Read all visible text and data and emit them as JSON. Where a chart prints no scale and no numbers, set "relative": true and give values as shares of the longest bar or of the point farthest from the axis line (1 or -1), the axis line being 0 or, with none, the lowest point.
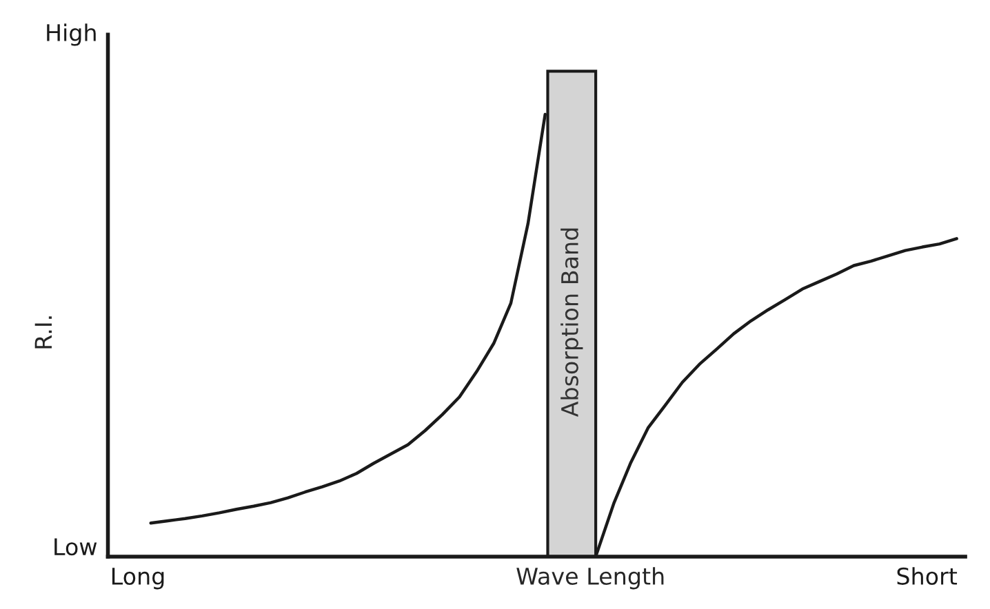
{
  "chart_data": {
    "type": "line",
    "xlabel": "Wave Length",
    "ylabel": "R.I.",
    "relative": true,
    "categories": [
      null,
      null,
      null,
      null,
      null,
      null,
      null,
      null,
      null,
      null,
      null,
      null,
      null,
      null,
      null,
      null,
      null,
      null,
      null,
      null,
      null,
      null,
      null,
      null,
      null,
      null,
      null,
      null,
      null,
      null,
      null,
      null,
      null,
      null,
      null,
      null,
      null,
      null,
      null,
      null,
      null,
      null,
      null,
      null,
      null,
      null,
      null,
      null,
      null,
      null
    ],
    "series": [
      {
        "color": "#1a1a1a",
        "values": [
          null,
          null,
          0.076,
          0.081,
          0.086,
          0.092,
          0.099,
          0.107,
          0.114,
          0.122,
          0.133,
          0.146,
          0.158,
          0.171,
          0.188,
          0.211,
          0.232,
          0.253,
          0.285,
          0.321,
          0.361,
          0.418,
          0.482,
          0.573,
          0.753,
          1.0,
          null,
          null,
          null,
          null,
          null,
          null,
          null,
          null,
          null,
          null,
          null,
          null,
          null,
          null,
          null,
          null,
          null,
          null,
          null,
          null,
          null,
          null,
          null,
          null
        ]
      },
      {
        "color": "#1a1a1a",
        "values": [
          null,
          null,
          null,
          null,
          null,
          null,
          null,
          null,
          null,
          null,
          null,
          null,
          null,
          null,
          null,
          null,
          null,
          null,
          null,
          null,
          null,
          null,
          null,
          null,
          null,
          null,
          null,
          null,
          0.006,
          0.12,
          0.213,
          0.291,
          0.342,
          0.394,
          0.435,
          0.469,
          0.504,
          0.533,
          0.558,
          0.581,
          0.605,
          0.622,
          0.639,
          0.658,
          0.668,
          0.68,
          0.692,
          0.7,
          0.707,
          0.719
        ]
      }
    ],
    "annotations": [
      "High",
      "Low",
      "Long",
      "Short",
      "Absorption Band"
    ],
    "marker": "none",
    "line_style": "solid"
  }
}
